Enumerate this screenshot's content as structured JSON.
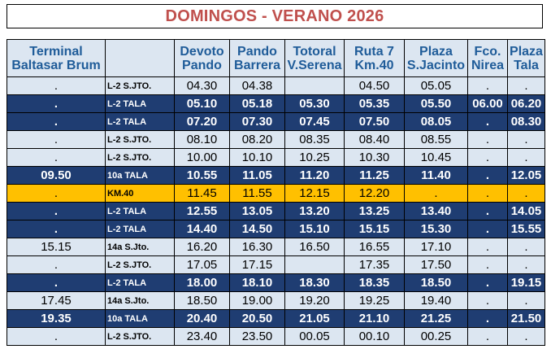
{
  "title": "DOMINGOS - VERANO 2026",
  "columns": [
    "Terminal Baltasar Brum",
    "",
    "Devoto Pando",
    "Pando Barrera",
    "Totoral V.Serena",
    "Ruta 7 Km.40",
    "Plaza S.Jacinto",
    "Fco. Nirea",
    "Plaza Tala"
  ],
  "rows": [
    {
      "style": "light",
      "cells": [
        ".",
        "L-2 S.JTO.",
        "04.30",
        "04.38",
        "",
        "04.50",
        "05.05",
        ".",
        "."
      ]
    },
    {
      "style": "dark",
      "cells": [
        ".",
        "L-2 TALA",
        "05.10",
        "05.18",
        "05.30",
        "05.35",
        "05.50",
        "06.00",
        "06.20"
      ]
    },
    {
      "style": "dark",
      "cells": [
        ".",
        "L-2 TALA",
        "07.20",
        "07.30",
        "07.45",
        "07.50",
        "08.05",
        ".",
        "08.30"
      ]
    },
    {
      "style": "light",
      "cells": [
        ".",
        "L-2 S.JTO.",
        "08.10",
        "08.20",
        "08.35",
        "08.40",
        "08.55",
        ".",
        "."
      ]
    },
    {
      "style": "light",
      "cells": [
        ".",
        "L-2 S.JTO.",
        "10.00",
        "10.10",
        "10.25",
        "10.30",
        "10.45",
        ".",
        "."
      ]
    },
    {
      "style": "dark",
      "cells": [
        "09.50",
        "10a TALA",
        "10.55",
        "11.05",
        "11.20",
        "11.25",
        "11.40",
        ".",
        "12.05"
      ]
    },
    {
      "style": "gold",
      "cells": [
        ".",
        "KM.40",
        "11.45",
        "11.55",
        "12.15",
        "12.20",
        ".",
        ".",
        "."
      ]
    },
    {
      "style": "dark",
      "cells": [
        ".",
        "L-2 TALA",
        "12.55",
        "13.05",
        "13.20",
        "13.25",
        "13.40",
        ".",
        "14.05"
      ]
    },
    {
      "style": "dark",
      "cells": [
        ".",
        "L-2 TALA",
        "14.40",
        "14.50",
        "15.10",
        "15.15",
        "15.30",
        ".",
        "15.55"
      ]
    },
    {
      "style": "light",
      "cells": [
        "15.15",
        "14a S.Jto.",
        "16.20",
        "16.30",
        "16.50",
        "16.55",
        "17.10",
        ".",
        "."
      ]
    },
    {
      "style": "light",
      "cells": [
        ".",
        "L-2 S.JTO.",
        "17.05",
        "17.15",
        "",
        "17.35",
        "17.50",
        ".",
        "."
      ]
    },
    {
      "style": "dark",
      "cells": [
        ".",
        "L-2 TALA",
        "18.00",
        "18.10",
        "18.30",
        "18.35",
        "18.50",
        ".",
        "19.15"
      ]
    },
    {
      "style": "light",
      "cells": [
        "17.45",
        "14a S.Jto.",
        "18.50",
        "19.00",
        "19.20",
        "19.25",
        "19.40",
        ".",
        "."
      ]
    },
    {
      "style": "dark",
      "cells": [
        "19.35",
        "10a TALA",
        "20.40",
        "20.50",
        "21.05",
        "21.10",
        "21.25",
        ".",
        "21.50"
      ]
    },
    {
      "style": "light",
      "cells": [
        ".",
        "L-2 S.JTO.",
        "23.40",
        "23.50",
        "00.05",
        "00.10",
        "00.25",
        ".",
        "."
      ]
    }
  ],
  "colors": {
    "title": "#c0504d",
    "header_bg": "#dce6f1",
    "header_text": "#1f5c99",
    "light_row": "#dce6f1",
    "dark_row": "#1f3d72",
    "highlight_row": "#ffc000"
  }
}
